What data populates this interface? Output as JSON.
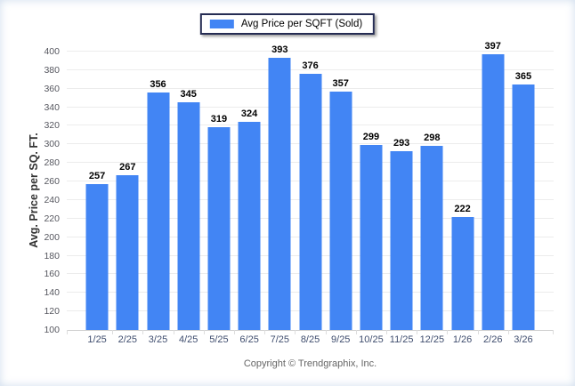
{
  "chart_data": {
    "type": "bar",
    "title": "",
    "legend": {
      "label": "Avg Price per SQFT (Sold)",
      "position": "top-center"
    },
    "categories": [
      "1/25",
      "2/25",
      "3/25",
      "4/25",
      "5/25",
      "6/25",
      "7/25",
      "8/25",
      "9/25",
      "10/25",
      "11/25",
      "12/25",
      "1/26",
      "2/26",
      "3/26"
    ],
    "values": [
      257,
      267,
      356,
      345,
      319,
      324,
      393,
      376,
      357,
      299,
      293,
      298,
      222,
      397,
      365
    ],
    "xlabel": "",
    "ylabel": "Avg. Price per SQ. FT.",
    "ylim": [
      100,
      400
    ],
    "ystep": 20,
    "yticks": [
      100,
      120,
      140,
      160,
      180,
      200,
      220,
      240,
      260,
      280,
      300,
      320,
      340,
      360,
      380,
      400
    ],
    "grid": "horizontal",
    "value_labels": true
  },
  "footer": {
    "text": "Copyright © Trendgraphix, Inc."
  },
  "colors": {
    "bar": "#4285F4",
    "legend_border": "#252c53",
    "grid": "#ececec",
    "axis_line": "#cfcfcf",
    "tick": "#dddddd",
    "y_tick_label": "#56575f",
    "x_tick_label": "#3f4d6e",
    "value_label": "#000000",
    "footer_text": "#666666"
  }
}
